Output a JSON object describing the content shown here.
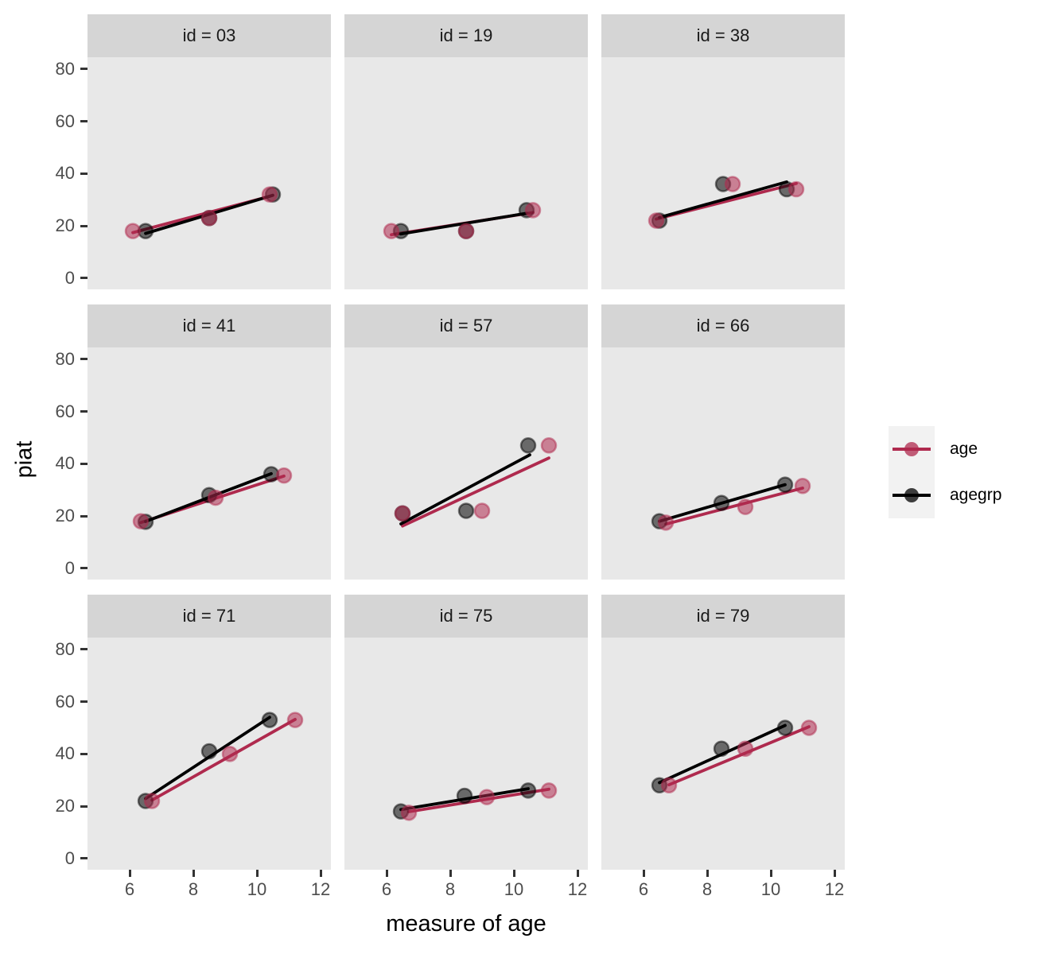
{
  "chart_data": {
    "type": "scatter",
    "title": "",
    "xlabel": "measure of age",
    "ylabel": "piat",
    "x_ticks": [
      6,
      8,
      10,
      12
    ],
    "y_ticks": [
      0,
      20,
      40,
      60,
      80
    ],
    "x_domain": [
      4.675,
      12.325
    ],
    "y_domain": [
      -4.3,
      84.5
    ],
    "grid": "off",
    "legend": {
      "position": "right",
      "entries": [
        {
          "name": "age",
          "label": "age",
          "color": "#AF2A4E"
        },
        {
          "name": "agegrp",
          "label": "agegrp",
          "color": "#000000"
        }
      ]
    },
    "facets": [
      {
        "label": "id = 03",
        "series": [
          {
            "name": "age",
            "points": [
              [
                6.1,
                18
              ],
              [
                8.5,
                23
              ],
              [
                10.4,
                32
              ]
            ],
            "line": [
              [
                6.1,
                17.4
              ],
              [
                10.4,
                31.3
              ]
            ]
          },
          {
            "name": "agegrp",
            "points": [
              [
                6.5,
                18
              ],
              [
                8.5,
                23
              ],
              [
                10.5,
                32
              ]
            ],
            "line": [
              [
                6.5,
                17.1
              ],
              [
                10.5,
                31.7
              ]
            ]
          }
        ]
      },
      {
        "label": "id = 19",
        "series": [
          {
            "name": "age",
            "points": [
              [
                6.15,
                18
              ],
              [
                8.5,
                18
              ],
              [
                10.6,
                26
              ]
            ],
            "line": [
              [
                6.15,
                16.6
              ],
              [
                10.6,
                25.1
              ]
            ]
          },
          {
            "name": "agegrp",
            "points": [
              [
                6.45,
                18
              ],
              [
                8.5,
                18
              ],
              [
                10.4,
                26
              ]
            ],
            "line": [
              [
                6.45,
                16.9
              ],
              [
                10.4,
                24.8
              ]
            ]
          }
        ]
      },
      {
        "label": "id = 38",
        "series": [
          {
            "name": "age",
            "points": [
              [
                6.4,
                22
              ],
              [
                8.8,
                36
              ],
              [
                10.8,
                34
              ]
            ],
            "line": [
              [
                6.4,
                22.6
              ],
              [
                10.8,
                36.2
              ]
            ]
          },
          {
            "name": "agegrp",
            "points": [
              [
                6.5,
                22
              ],
              [
                8.5,
                36
              ],
              [
                10.5,
                34
              ]
            ],
            "line": [
              [
                6.5,
                23.2
              ],
              [
                10.5,
                36.8
              ]
            ]
          }
        ]
      },
      {
        "label": "id = 41",
        "series": [
          {
            "name": "age",
            "points": [
              [
                6.35,
                18
              ],
              [
                8.7,
                27
              ],
              [
                10.85,
                35.5
              ]
            ],
            "line": [
              [
                6.35,
                17.5
              ],
              [
                10.85,
                35.3
              ]
            ]
          },
          {
            "name": "agegrp",
            "points": [
              [
                6.5,
                17.8
              ],
              [
                8.5,
                28
              ],
              [
                10.45,
                36
              ]
            ],
            "line": [
              [
                6.5,
                17.9
              ],
              [
                10.45,
                36.2
              ]
            ]
          }
        ]
      },
      {
        "label": "id = 57",
        "series": [
          {
            "name": "age",
            "points": [
              [
                6.5,
                21
              ],
              [
                9.0,
                22
              ],
              [
                11.1,
                47
              ]
            ],
            "line": [
              [
                6.5,
                16.2
              ],
              [
                11.1,
                42.2
              ]
            ]
          },
          {
            "name": "agegrp",
            "points": [
              [
                6.5,
                21
              ],
              [
                8.5,
                22
              ],
              [
                10.45,
                47
              ]
            ],
            "line": [
              [
                6.45,
                17.0
              ],
              [
                10.5,
                43.4
              ]
            ]
          }
        ]
      },
      {
        "label": "id = 66",
        "series": [
          {
            "name": "age",
            "points": [
              [
                6.7,
                17.5
              ],
              [
                9.2,
                23.5
              ],
              [
                11.0,
                31.5
              ]
            ],
            "line": [
              [
                6.7,
                16.9
              ],
              [
                11.0,
                30.7
              ]
            ]
          },
          {
            "name": "agegrp",
            "points": [
              [
                6.5,
                18
              ],
              [
                8.45,
                25
              ],
              [
                10.45,
                32
              ]
            ],
            "line": [
              [
                6.5,
                18.0
              ],
              [
                10.45,
                32.0
              ]
            ]
          }
        ]
      },
      {
        "label": "id = 71",
        "series": [
          {
            "name": "age",
            "points": [
              [
                6.7,
                22
              ],
              [
                9.15,
                40
              ],
              [
                11.2,
                53
              ]
            ],
            "line": [
              [
                6.7,
                22.3
              ],
              [
                11.2,
                53.2
              ]
            ]
          },
          {
            "name": "agegrp",
            "points": [
              [
                6.5,
                22
              ],
              [
                8.5,
                41
              ],
              [
                10.4,
                53
              ]
            ],
            "line": [
              [
                6.5,
                22.9
              ],
              [
                10.4,
                54.0
              ]
            ]
          }
        ]
      },
      {
        "label": "id = 75",
        "series": [
          {
            "name": "age",
            "points": [
              [
                6.7,
                17.5
              ],
              [
                9.15,
                23.5
              ],
              [
                11.1,
                26
              ]
            ],
            "line": [
              [
                6.7,
                17.9
              ],
              [
                11.1,
                26.5
              ]
            ]
          },
          {
            "name": "agegrp",
            "points": [
              [
                6.45,
                18
              ],
              [
                8.45,
                24
              ],
              [
                10.45,
                26
              ]
            ],
            "line": [
              [
                6.45,
                18.7
              ],
              [
                10.45,
                26.7
              ]
            ]
          }
        ]
      },
      {
        "label": "id = 79",
        "series": [
          {
            "name": "age",
            "points": [
              [
                6.8,
                28
              ],
              [
                9.2,
                42
              ],
              [
                11.2,
                50
              ]
            ],
            "line": [
              [
                6.8,
                28.2
              ],
              [
                11.2,
                50.4
              ]
            ]
          },
          {
            "name": "agegrp",
            "points": [
              [
                6.5,
                28
              ],
              [
                8.45,
                42
              ],
              [
                10.45,
                50
              ]
            ],
            "line": [
              [
                6.5,
                29.0
              ],
              [
                10.45,
                50.9
              ]
            ]
          }
        ]
      }
    ]
  },
  "style": {
    "panel_bg": "#E8E8E8",
    "strip_bg": "#D5D5D5",
    "strip_text": "#1A1A1A",
    "tick_mark": "#333333",
    "tick_text": "#4D4D4D",
    "legend_key_bg": "#F2F2F2",
    "line_width": 3.8,
    "point_radius": 9,
    "point_fill_opacity": 0.55,
    "point_stroke_opacity": 0.5
  }
}
